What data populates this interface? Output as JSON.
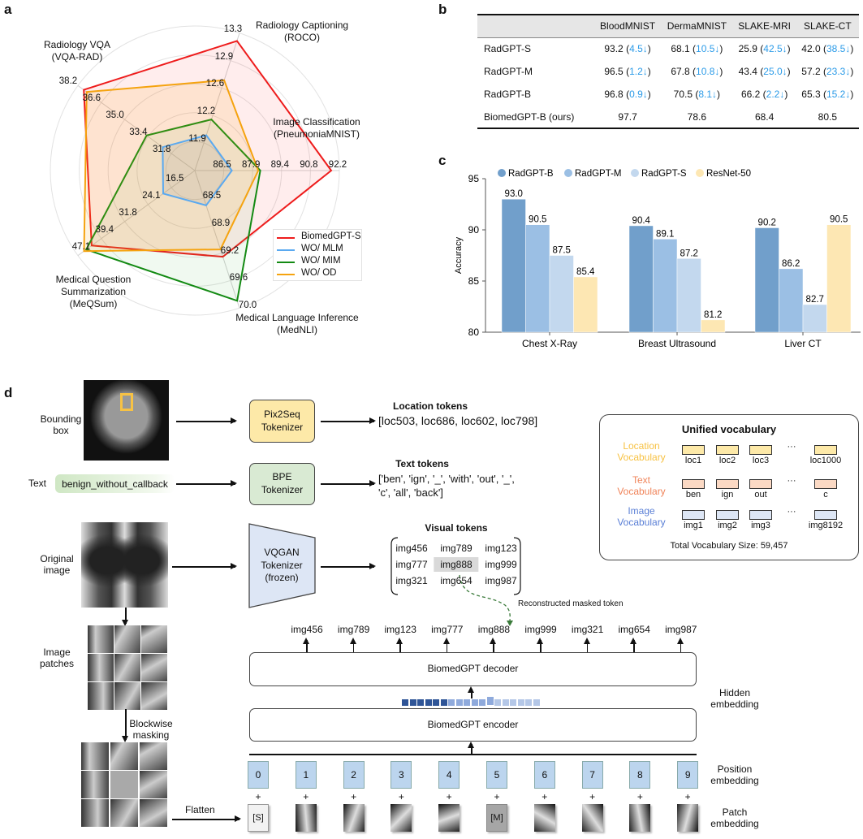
{
  "panels": {
    "a": "a",
    "b": "b",
    "c": "c",
    "d": "d"
  },
  "chart_data": [
    {
      "type": "radar",
      "axes": [
        {
          "name": "Image Classification\n(PneumoniaMNIST)",
          "ticks": [
            86.5,
            87.9,
            89.4,
            90.8,
            92.2
          ]
        },
        {
          "name": "Radiology Captioning\n(ROCO)",
          "ticks": [
            11.9,
            12.2,
            12.6,
            12.9,
            13.3
          ]
        },
        {
          "name": "Radiology VQA\n(VQA-RAD)",
          "ticks": [
            31.8,
            33.4,
            35.0,
            36.6,
            38.2
          ]
        },
        {
          "name": "Medical Question\nSummarization\n(MeQSum)",
          "ticks": [
            16.5,
            24.1,
            31.8,
            39.4,
            47.1
          ]
        },
        {
          "name": "Medical Language Inference\n(MedNLI)",
          "ticks": [
            68.5,
            68.9,
            69.2,
            69.6,
            70.0
          ]
        }
      ],
      "series": [
        {
          "name": "BiomedGPT-S",
          "color": "#ee1c1c",
          "fill": "rgba(255,60,60,0.09)",
          "values": [
            91.8,
            13.2,
            37.8,
            42.6,
            69.3
          ]
        },
        {
          "name": "WO/ MLM",
          "color": "#5aa9f0",
          "fill": "rgba(120,120,120,0.12)",
          "values": [
            86.9,
            12.0,
            32.4,
            19.2,
            68.6
          ]
        },
        {
          "name": "WO/ MIM",
          "color": "#138a13",
          "fill": "rgba(60,180,60,0.08)",
          "values": [
            88.3,
            12.2,
            33.5,
            44.4,
            69.9
          ]
        },
        {
          "name": "WO/ OD",
          "color": "#f5a30f",
          "fill": "rgba(245,163,15,0.13)",
          "values": [
            88.2,
            12.7,
            37.6,
            45.1,
            69.2
          ]
        }
      ],
      "legend_position": "bottom-right",
      "grid": true
    },
    {
      "type": "table",
      "columns": [
        "",
        "BloodMNIST",
        "DermaMNIST",
        "SLAKE-MRI",
        "SLAKE-CT"
      ],
      "rows": [
        {
          "model": "RadGPT-S",
          "cells": [
            [
              "93.2",
              "4.5↓"
            ],
            [
              "68.1",
              "10.5↓"
            ],
            [
              "25.9",
              "42.5↓"
            ],
            [
              "42.0",
              "38.5↓"
            ]
          ]
        },
        {
          "model": "RadGPT-M",
          "cells": [
            [
              "96.5",
              "1.2↓"
            ],
            [
              "67.8",
              "10.8↓"
            ],
            [
              "43.4",
              "25.0↓"
            ],
            [
              "57.2",
              "23.3↓"
            ]
          ]
        },
        {
          "model": "RadGPT-B",
          "cells": [
            [
              "96.8",
              "0.9↓"
            ],
            [
              "70.5",
              "8.1↓"
            ],
            [
              "66.2",
              "2.2↓"
            ],
            [
              "65.3",
              "15.2↓"
            ]
          ]
        },
        {
          "model": "BiomedGPT-B (ours)",
          "cells": [
            [
              "97.7",
              ""
            ],
            [
              "78.6",
              ""
            ],
            [
              "68.4",
              ""
            ],
            [
              "80.5",
              ""
            ]
          ]
        }
      ]
    },
    {
      "type": "bar",
      "categories": [
        "Chest X-Ray",
        "Breast Ultrasound",
        "Liver CT"
      ],
      "series": [
        {
          "name": "RadGPT-B",
          "color": "#719fcb",
          "values": [
            93.0,
            90.4,
            90.2
          ]
        },
        {
          "name": "RadGPT-M",
          "color": "#9bbfe4",
          "values": [
            90.5,
            89.1,
            86.2
          ]
        },
        {
          "name": "RadGPT-S",
          "color": "#c3d8ee",
          "values": [
            87.5,
            87.2,
            82.7
          ]
        },
        {
          "name": "ResNet-50",
          "color": "#fde7b3",
          "values": [
            85.4,
            81.2,
            90.5
          ]
        }
      ],
      "ylabel": "Accuracy",
      "ylim": [
        80,
        95
      ],
      "yticks": [
        80,
        85,
        90,
        95
      ],
      "legend_position": "top"
    }
  ],
  "diagram": {
    "bbox_label": "Bounding\nbox",
    "text_label": "Text",
    "text_input": "benign_without_callback",
    "orig_label": "Original\nimage",
    "patches_label": "Image\npatches",
    "masking_label": "Blockwise\nmasking",
    "flatten_label": "Flatten",
    "pix2seq": "Pix2Seq\nTokenizer",
    "bpe": "BPE\nTokenizer",
    "vqgan": "VQGAN\nTokenizer\n(frozen)",
    "loc_title": "Location tokens",
    "loc_tokens": "[loc503, loc686, loc602, loc798]",
    "text_title": "Text tokens",
    "text_tokens_1": "['ben', 'ign', '_', 'with', 'out', '_',",
    "text_tokens_2": "'c', 'all', 'back']",
    "visual_title": "Visual tokens",
    "visual_tokens": [
      [
        "img456",
        "img789",
        "img123"
      ],
      [
        "img777",
        "img888",
        "img999"
      ],
      [
        "img321",
        "img654",
        "img987"
      ]
    ],
    "masked_token": "img888",
    "reconstructed_label": "Reconstructed masked token",
    "outputs": [
      "img456",
      "img789",
      "img123",
      "img777",
      "img888",
      "img999",
      "img321",
      "img654",
      "img987"
    ],
    "decoder": "BiomedGPT decoder",
    "encoder": "BiomedGPT encoder",
    "hidden_label": "Hidden\nembedding",
    "position_label": "Position\nembedding",
    "patch_label": "Patch\nembedding",
    "positions": [
      "0",
      "1",
      "2",
      "3",
      "4",
      "5",
      "6",
      "7",
      "8",
      "9"
    ],
    "plus": "+",
    "start_token": "[S]",
    "mask_token": "[M]",
    "vocab": {
      "title": "Unified vocabulary",
      "rows": [
        {
          "label": "Location\nVocabulary",
          "label_color": "#f7c244",
          "fill": "#fde9a8",
          "items": [
            "loc1",
            "loc2",
            "loc3",
            "loc1000"
          ]
        },
        {
          "label": "Text\nVocabulary",
          "label_color": "#f0845a",
          "fill": "#fbd9c4",
          "items": [
            "ben",
            "ign",
            "out",
            "c"
          ]
        },
        {
          "label": "Image\nVocabulary",
          "label_color": "#5a7fd6",
          "fill": "#dde6f5",
          "items": [
            "img1",
            "img2",
            "img3",
            "img8192"
          ]
        }
      ],
      "ellipsis": "···",
      "total": "Total Vocabulary Size: 59,457"
    }
  }
}
